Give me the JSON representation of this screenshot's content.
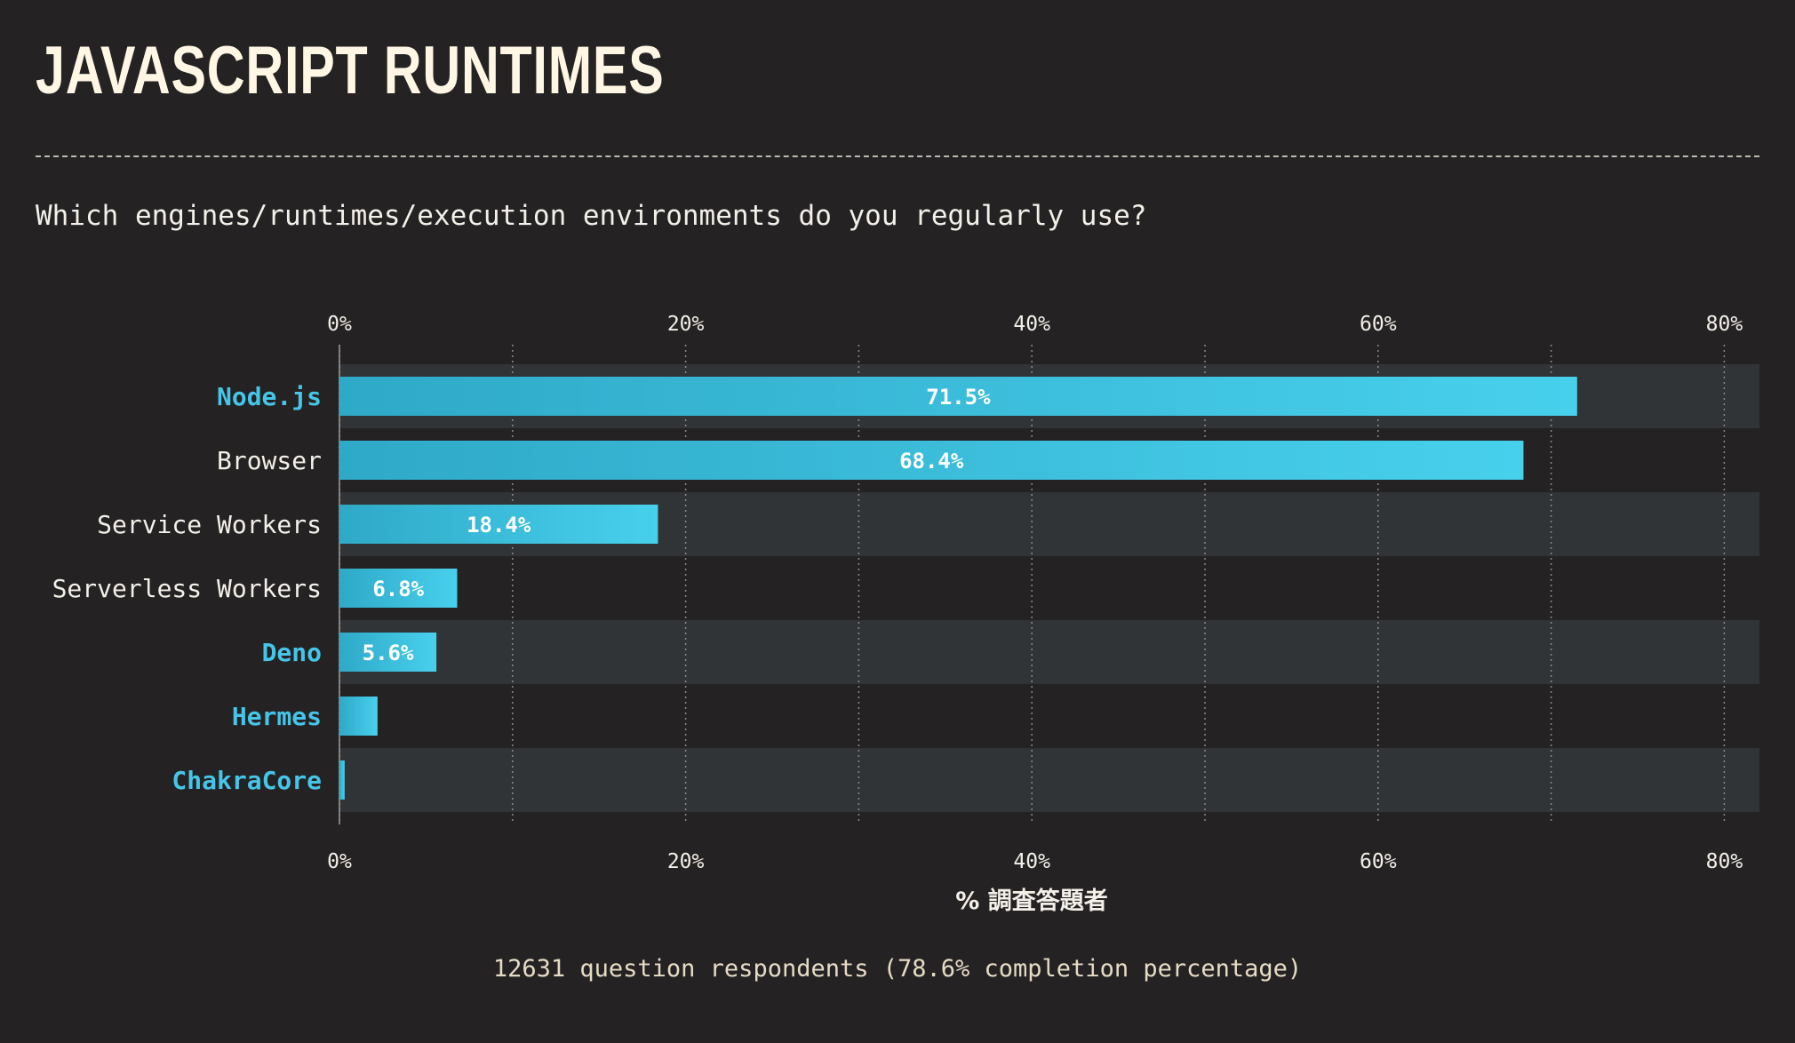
{
  "header": {
    "title": "JAVASCRIPT RUNTIMES",
    "question": "Which engines/runtimes/execution environments do you regularly use?"
  },
  "chart_data": {
    "type": "bar",
    "orientation": "horizontal",
    "categories": [
      "Node.js",
      "Browser",
      "Service Workers",
      "Serverless Workers",
      "Deno",
      "Hermes",
      "ChakraCore"
    ],
    "highlighted_categories": [
      "Node.js",
      "Deno",
      "Hermes",
      "ChakraCore"
    ],
    "values": [
      71.5,
      68.4,
      18.4,
      6.8,
      5.6,
      2.2,
      0.3
    ],
    "value_labels": [
      "71.5%",
      "68.4%",
      "18.4%",
      "6.8%",
      "5.6%",
      "",
      ""
    ],
    "xlabel": "% 調査答題者",
    "xlim": [
      0,
      80
    ],
    "ticks": [
      0,
      20,
      40,
      60,
      80
    ],
    "tick_labels": [
      "0%",
      "20%",
      "40%",
      "60%",
      "80%"
    ],
    "minor_gridlines": [
      10,
      30,
      50,
      70
    ],
    "grid": true,
    "colors": {
      "bar_start": "#2fa9c8",
      "bar_end": "#47d0ec",
      "highlight_label": "#45c5e7",
      "label": "#f3f0ea",
      "band": "#303436",
      "value_text": "#ffffff"
    }
  },
  "footer": {
    "text": "12631 question respondents (78.6% completion percentage)"
  }
}
